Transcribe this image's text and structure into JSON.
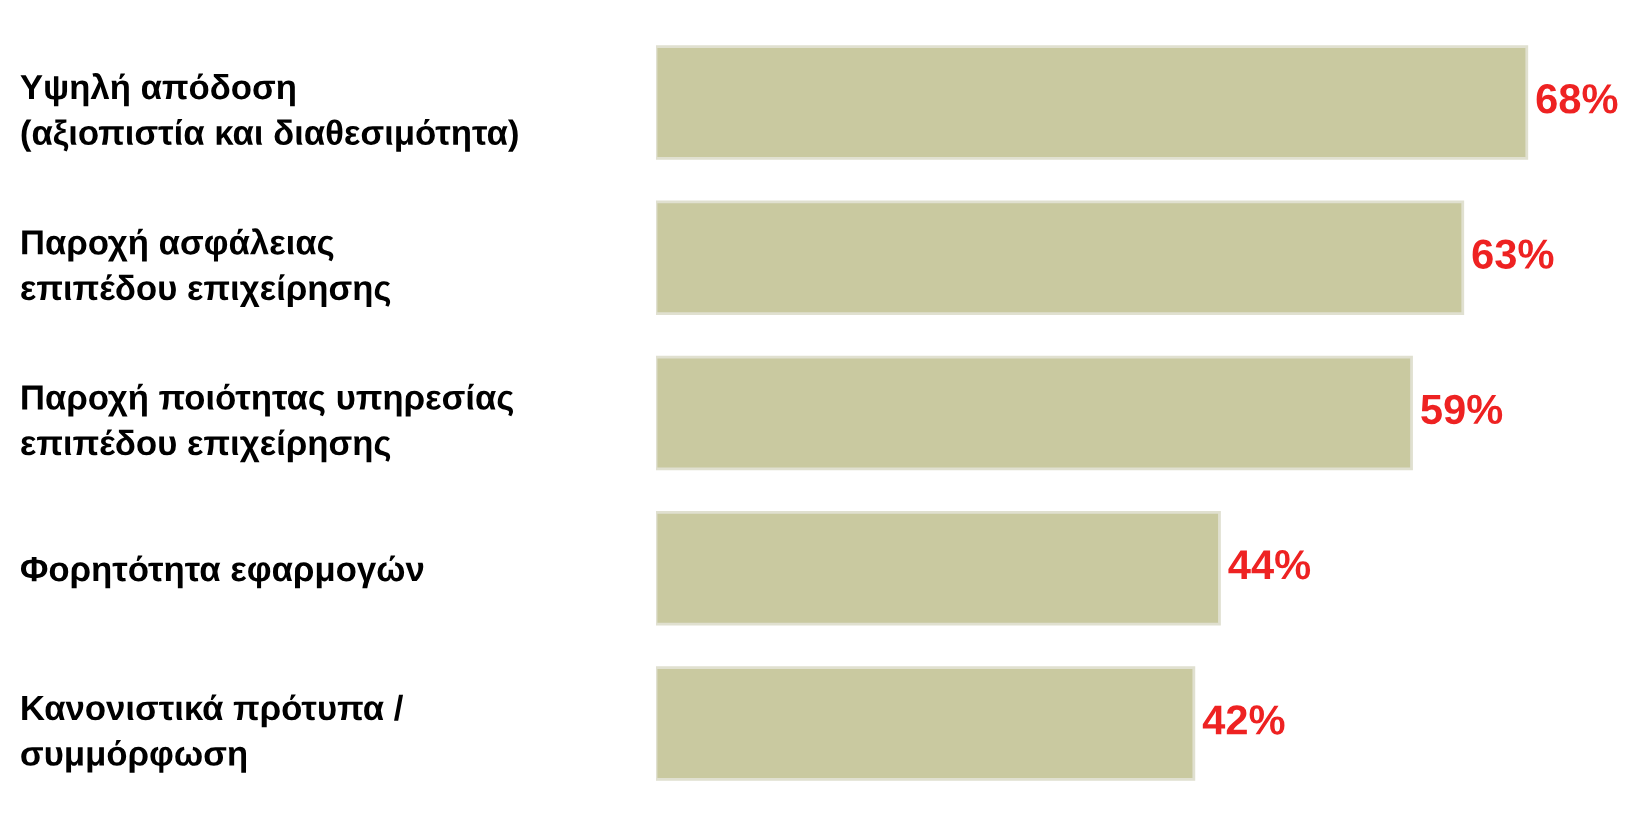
{
  "chart_data": {
    "type": "bar",
    "orientation": "horizontal",
    "categories": [
      "Υψηλή απόδοση\n(αξιοπιστία και διαθεσιμότητα)",
      "Παροχή ασφάλειας\nεπιπέδου επιχείρησης",
      "Παροχή ποιότητας υπηρεσίας\nεπιπέδου επιχείρησης",
      "Φορητότητα εφαρμογών",
      "Κανονιστικά πρότυπα /\nσυμμόρφωση"
    ],
    "values": [
      68,
      63,
      59,
      44,
      42
    ],
    "value_labels": [
      "68%",
      "63%",
      "59%",
      "44%",
      "42%"
    ],
    "color": "#c9c9a0",
    "grid": false,
    "legend": false
  }
}
